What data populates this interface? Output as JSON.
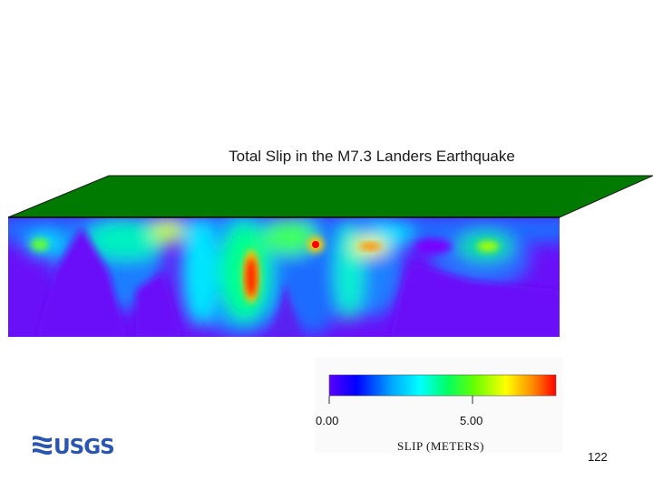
{
  "title": "Total Slip in the M7.3 Landers Earthquake",
  "colorbar": {
    "ticks": [
      "0.00",
      "5.00"
    ],
    "units_label": "SLIP (METERS)",
    "colors": [
      "#5a00ff",
      "#0000ff",
      "#00aaff",
      "#00ffff",
      "#00ff66",
      "#66ff00",
      "#ffff00",
      "#ff8800",
      "#ff0000"
    ]
  },
  "fault_model": {
    "surface_color": "#007a00",
    "background_slip_color": "#5a00ff",
    "hotspot_color": "#ff0000"
  },
  "logo_text": "USGS",
  "page_number": "122"
}
